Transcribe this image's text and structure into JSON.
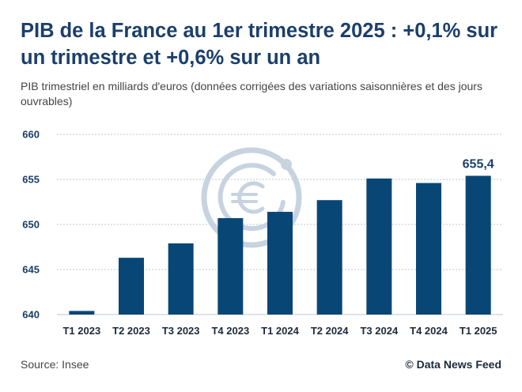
{
  "title": "PIB de la France au 1er trimestre 2025 : +0,1% sur un trimestre et +0,6% sur un an",
  "subtitle": "PIB trimestriel en milliards d'euros (données corrigées des variations saisonnières et des jours ouvrables)",
  "source": "Source: Insee",
  "credit": "© Data News Feed",
  "watermark_icon": "euro-coin-icon",
  "colors": {
    "bar": "#084675",
    "title": "#1b3f6b",
    "grid": "#c9d2dc",
    "watermark": "#c7d3df"
  },
  "chart_data": {
    "type": "bar",
    "categories": [
      "T1 2023",
      "T2 2023",
      "T3 2023",
      "T4 2023",
      "T1 2024",
      "T2 2024",
      "T3 2024",
      "T4 2024",
      "T1 2025"
    ],
    "values": [
      640.4,
      646.3,
      647.9,
      650.7,
      651.4,
      652.7,
      655.1,
      654.6,
      655.4
    ],
    "ylim": [
      640,
      660
    ],
    "yticks": [
      640,
      645,
      650,
      655,
      660
    ],
    "grid": true,
    "annotations": [
      {
        "category": "T1 2025",
        "text": "655,4"
      }
    ]
  }
}
